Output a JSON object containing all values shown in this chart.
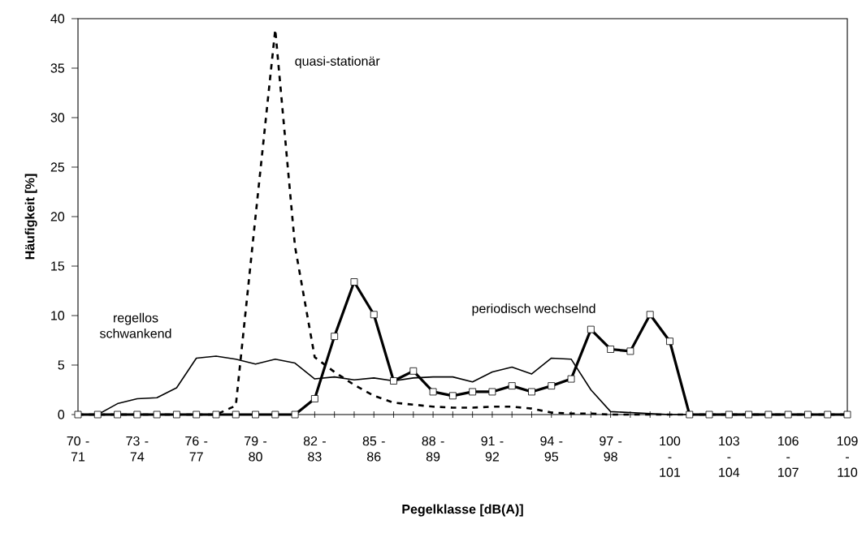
{
  "chart_data": {
    "type": "line",
    "xlabel": "Pegelklasse [dB(A)]",
    "ylabel": "Häufigkeit [%]",
    "categories": [
      "70 - 71",
      null,
      null,
      "73 - 74",
      null,
      null,
      "76 - 77",
      null,
      null,
      "79 - 80",
      null,
      null,
      "82 - 83",
      null,
      null,
      "85 - 86",
      null,
      null,
      "88 - 89",
      null,
      null,
      "91 - 92",
      null,
      null,
      "94 - 95",
      null,
      null,
      "97 - 98",
      null,
      null,
      "100 - 101",
      null,
      null,
      "103 - 104",
      null,
      null,
      "106 - 107",
      null,
      null,
      "109 - 110"
    ],
    "series": [
      {
        "name": "regellos schwankend",
        "color": "#000000",
        "marker": "none",
        "line_style": "solid",
        "values": [
          0,
          0,
          1.1,
          1.6,
          1.7,
          2.7,
          5.7,
          5.9,
          5.6,
          5.1,
          5.6,
          5.2,
          3.6,
          3.8,
          3.5,
          3.7,
          3.4,
          3.7,
          3.8,
          3.8,
          3.3,
          4.3,
          4.8,
          4.1,
          5.7,
          5.6,
          2.5,
          0.3,
          0.2,
          0.1,
          0,
          0,
          0,
          0,
          0,
          0,
          0,
          0,
          0,
          0
        ]
      },
      {
        "name": "quasi-stationär",
        "color": "#000000",
        "marker": "none",
        "line_style": "dashed",
        "values": [
          0,
          0,
          0,
          0,
          0,
          0,
          0,
          0,
          0.9,
          20,
          38.9,
          17,
          5.8,
          4.3,
          3.0,
          1.9,
          1.2,
          1.0,
          0.8,
          0.7,
          0.7,
          0.8,
          0.8,
          0.6,
          0.2,
          0.1,
          0.1,
          0,
          0,
          0,
          0,
          0,
          0,
          0,
          0,
          0,
          0,
          0,
          0,
          0
        ]
      },
      {
        "name": "periodisch wechselnd",
        "color": "#000000",
        "marker": "square",
        "line_style": "solid",
        "values": [
          0,
          0,
          0,
          0,
          0,
          0,
          0,
          0,
          0,
          0,
          0,
          0,
          1.6,
          7.9,
          13.4,
          10.1,
          3.4,
          4.4,
          2.3,
          1.9,
          2.3,
          2.3,
          2.9,
          2.3,
          2.9,
          3.6,
          8.6,
          6.6,
          6.4,
          10.1,
          7.4,
          0,
          0,
          0,
          0,
          0,
          0,
          0,
          0,
          0
        ]
      }
    ],
    "ylim": [
      0,
      40
    ],
    "yticks": [
      0,
      5,
      10,
      15,
      20,
      25,
      30,
      35,
      40
    ],
    "grid": false,
    "legend": false
  }
}
